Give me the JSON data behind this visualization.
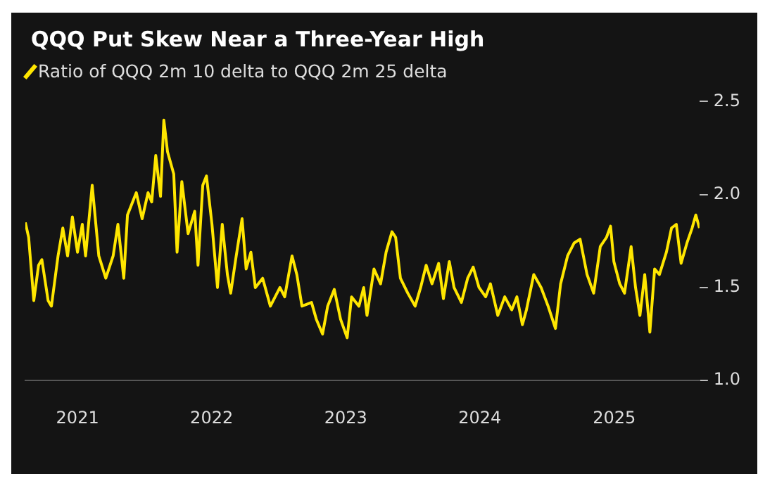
{
  "chart_data": {
    "type": "line",
    "title": "QQQ Put Skew Near a Three-Year High",
    "legend": "top left",
    "grid": false,
    "marker": "none",
    "line_style": "solid",
    "xlim": [
      "2020-08-12",
      "2025-08-21"
    ],
    "xticks": [
      "2021",
      "2022",
      "2023",
      "2024",
      "2025"
    ],
    "ylim": [
      1,
      2.5
    ],
    "yticks": [
      {
        "value": 1,
        "label": "1.0"
      },
      {
        "value": 1.5,
        "label": "1.5"
      },
      {
        "value": 2,
        "label": "2.0"
      },
      {
        "value": 2.5,
        "label": "2.5"
      }
    ],
    "series": [
      {
        "name": "Ratio of QQQ 2m 10 delta to QQQ 2m 25 delta",
        "color": "#ffe600",
        "x": [
          "2020-08-12",
          "2020-08-21",
          "2020-09-04",
          "2020-09-17",
          "2020-09-26",
          "2020-10-13",
          "2020-10-22",
          "2020-11-09",
          "2020-11-22",
          "2020-12-05",
          "2020-12-18",
          "2021-01-01",
          "2021-01-14",
          "2021-01-23",
          "2021-02-10",
          "2021-02-28",
          "2021-03-19",
          "2021-04-08",
          "2021-04-21",
          "2021-05-07",
          "2021-05-17",
          "2021-06-10",
          "2021-06-26",
          "2021-07-12",
          "2021-07-22",
          "2021-08-02",
          "2021-08-15",
          "2021-08-24",
          "2021-09-03",
          "2021-09-20",
          "2021-09-29",
          "2021-10-12",
          "2021-10-29",
          "2021-11-16",
          "2021-11-25",
          "2021-12-08",
          "2021-12-18",
          "2022-01-02",
          "2022-01-17",
          "2022-01-30",
          "2022-02-13",
          "2022-02-22",
          "2022-03-09",
          "2022-03-25",
          "2022-04-05",
          "2022-04-18",
          "2022-04-30",
          "2022-05-20",
          "2022-06-10",
          "2022-07-06",
          "2022-07-19",
          "2022-08-08",
          "2022-08-21",
          "2022-09-04",
          "2022-09-30",
          "2022-10-13",
          "2022-10-30",
          "2022-11-13",
          "2022-12-01",
          "2022-12-18",
          "2023-01-05",
          "2023-01-17",
          "2023-02-06",
          "2023-02-19",
          "2023-02-28",
          "2023-03-19",
          "2023-04-06",
          "2023-04-21",
          "2023-05-07",
          "2023-05-17",
          "2023-05-30",
          "2023-06-19",
          "2023-07-09",
          "2023-07-24",
          "2023-08-08",
          "2023-08-24",
          "2023-09-11",
          "2023-09-24",
          "2023-10-10",
          "2023-10-23",
          "2023-11-12",
          "2023-11-29",
          "2023-12-14",
          "2023-12-30",
          "2024-01-17",
          "2024-01-30",
          "2024-02-19",
          "2024-03-09",
          "2024-03-28",
          "2024-04-11",
          "2024-04-26",
          "2024-05-07",
          "2024-05-27",
          "2024-06-16",
          "2024-07-05",
          "2024-07-25",
          "2024-08-08",
          "2024-08-27",
          "2024-09-14",
          "2024-09-30",
          "2024-10-19",
          "2024-11-06",
          "2024-11-24",
          "2024-12-11",
          "2024-12-22",
          "2024-12-31",
          "2025-01-16",
          "2025-01-29",
          "2025-02-16",
          "2025-02-28",
          "2025-03-12",
          "2025-03-25",
          "2025-04-08",
          "2025-04-21",
          "2025-05-04",
          "2025-05-23",
          "2025-06-06",
          "2025-06-19",
          "2025-07-02",
          "2025-07-18",
          "2025-08-01",
          "2025-08-11",
          "2025-08-21"
        ],
        "values": [
          1.85,
          1.77,
          1.43,
          1.62,
          1.65,
          1.43,
          1.4,
          1.67,
          1.82,
          1.67,
          1.88,
          1.69,
          1.84,
          1.67,
          2.05,
          1.67,
          1.55,
          1.67,
          1.84,
          1.55,
          1.89,
          2.01,
          1.87,
          2.01,
          1.96,
          2.21,
          1.99,
          2.4,
          2.23,
          2.11,
          1.69,
          2.07,
          1.79,
          1.91,
          1.62,
          2.05,
          2.1,
          1.84,
          1.5,
          1.84,
          1.57,
          1.47,
          1.67,
          1.87,
          1.6,
          1.69,
          1.5,
          1.55,
          1.4,
          1.5,
          1.45,
          1.67,
          1.57,
          1.4,
          1.42,
          1.33,
          1.25,
          1.4,
          1.49,
          1.33,
          1.23,
          1.45,
          1.4,
          1.5,
          1.35,
          1.6,
          1.52,
          1.69,
          1.8,
          1.77,
          1.55,
          1.47,
          1.4,
          1.5,
          1.62,
          1.52,
          1.63,
          1.44,
          1.64,
          1.5,
          1.42,
          1.55,
          1.61,
          1.5,
          1.45,
          1.52,
          1.35,
          1.45,
          1.38,
          1.45,
          1.3,
          1.38,
          1.57,
          1.5,
          1.4,
          1.28,
          1.52,
          1.67,
          1.74,
          1.76,
          1.57,
          1.47,
          1.72,
          1.77,
          1.83,
          1.64,
          1.52,
          1.47,
          1.72,
          1.5,
          1.35,
          1.57,
          1.26,
          1.6,
          1.57,
          1.69,
          1.82,
          1.84,
          1.63,
          1.74,
          1.82,
          1.89,
          1.82
        ]
      }
    ]
  }
}
